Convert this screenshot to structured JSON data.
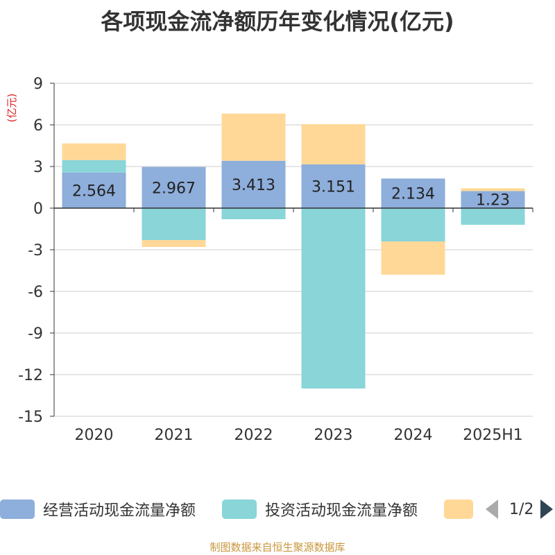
{
  "chart_data": {
    "type": "bar",
    "stacked": true,
    "title": "各项现金流净额历年变化情况(亿元)",
    "ylabel": "(亿元)",
    "xlabel": "",
    "categories": [
      "2020",
      "2021",
      "2022",
      "2023",
      "2024",
      "2025H1"
    ],
    "ylim": [
      -15,
      9
    ],
    "yticks": [
      9,
      6,
      3,
      0,
      -3,
      -6,
      -9,
      -12,
      -15
    ],
    "grid": true,
    "legend_position": "bottom",
    "series": [
      {
        "name": "经营活动现金流量净额",
        "color": "#8eaedb",
        "values": [
          2.564,
          2.967,
          3.413,
          3.151,
          2.134,
          1.23
        ],
        "labels": [
          "2.564",
          "2.967",
          "3.413",
          "3.151",
          "2.134",
          "1.23"
        ]
      },
      {
        "name": "投资活动现金流量净额",
        "color": "#89d5d8",
        "values": [
          0.9,
          -2.3,
          -0.8,
          -13.0,
          -2.4,
          -1.2
        ]
      },
      {
        "color": "#ffd898",
        "values": [
          1.2,
          -0.5,
          3.4,
          2.9,
          -2.4,
          0.2
        ]
      }
    ]
  },
  "legend": {
    "items": [
      "经营活动现金流量净额",
      "投资活动现金流量净额",
      ""
    ],
    "page_indicator": "1/2"
  },
  "source_note": "制图数据来自恒生聚源数据库"
}
